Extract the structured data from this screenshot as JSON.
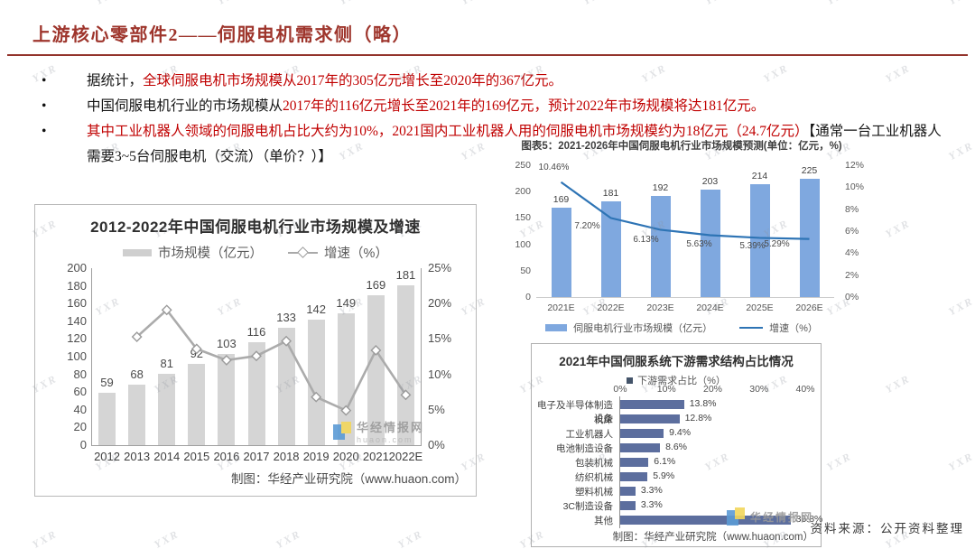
{
  "slide": {
    "title": "上游核心零部件2——伺服电机需求侧（略）",
    "source_note": "资料来源：公开资料整理",
    "watermark_text": "YXR"
  },
  "bullets": [
    {
      "segments": [
        {
          "text": "据统计，",
          "color": "black"
        },
        {
          "text": "全球伺服电机市场规模从2017年的305亿元增长至2020年的367亿元。",
          "color": "red"
        }
      ]
    },
    {
      "segments": [
        {
          "text": "中国伺服电机行业的市场规模从",
          "color": "black"
        },
        {
          "text": "2017年的116亿元增长至2021年的169亿元，预计2022年市场规模将达181亿元。",
          "color": "red"
        }
      ]
    },
    {
      "segments": [
        {
          "text": "其中工业机器人领域的伺服电机占比大约为10%，2021国内工业机器人用的伺服电机市场规模约为18亿元（24.7亿元）",
          "color": "red"
        },
        {
          "text": "【通常一台工业机器人需要3~5台伺服电机（交流）（单价？）】",
          "color": "black"
        }
      ]
    }
  ],
  "huajing_watermark": {
    "line1": "华经情报网",
    "line2": "huaon.com"
  },
  "colors": {
    "title_red": "#9E352C",
    "accent_red": "#C00000",
    "bar_gray": "#D5D5D5",
    "line_gray": "#ABABAB",
    "bar_blue": "#7FA8DF",
    "line_blue": "#2E74B5",
    "bar_slate": "#5C6E9E"
  },
  "chart_data": [
    {
      "id": "china-servo-market-2012-2022",
      "type": "bar+line",
      "title": "2012-2022年中国伺服电机行业市场规模及增速",
      "categories": [
        "2012",
        "2013",
        "2014",
        "2015",
        "2016",
        "2017",
        "2018",
        "2019",
        "2020",
        "2021",
        "2022E"
      ],
      "series": [
        {
          "name": "市场规模（亿元）",
          "type": "bar",
          "values": [
            59,
            68,
            81,
            92,
            103,
            116,
            133,
            142,
            149,
            169,
            181
          ]
        },
        {
          "name": "增速（%）",
          "type": "line",
          "values": [
            null,
            15.3,
            19.1,
            13.6,
            12.0,
            12.6,
            14.7,
            6.8,
            4.9,
            13.4,
            7.1
          ]
        }
      ],
      "y_left": {
        "min": 0,
        "max": 200,
        "step": 20
      },
      "y_right": {
        "min": 0,
        "max": 25,
        "step": 5,
        "suffix": "%"
      },
      "legend_position": "top",
      "grid": false,
      "source": "制图：华经产业研究院（www.huaon.com）"
    },
    {
      "id": "china-servo-forecast-2021-2026",
      "type": "bar+line",
      "caption": "图表5：2021-2026年中国伺服电机行业市场规模预测(单位：亿元，%)",
      "categories": [
        "2021E",
        "2022E",
        "2023E",
        "2024E",
        "2025E",
        "2026E"
      ],
      "series": [
        {
          "name": "伺服电机行业市场规模（亿元）",
          "type": "bar",
          "values": [
            169,
            181,
            192,
            203,
            214,
            225
          ]
        },
        {
          "name": "增速（%）",
          "type": "line",
          "values": [
            10.46,
            7.2,
            6.13,
            5.63,
            5.39,
            5.29
          ],
          "labels": [
            "10.46%",
            "7.20%",
            "6.13%",
            "5.63%",
            "5.39%",
            "5.29%"
          ]
        }
      ],
      "y_left": {
        "min": 0,
        "max": 250,
        "step": 50
      },
      "y_right": {
        "min": 0,
        "max": 12,
        "step": 2,
        "suffix": "%"
      },
      "legend_position": "bottom",
      "grid": false
    },
    {
      "id": "servo-downstream-demand-2021",
      "type": "bar",
      "orientation": "horizontal",
      "title": "2021年中国伺服系统下游需求结构占比情况",
      "legend": "下游需求占比（%）",
      "categories": [
        "电子及半导体制造设备",
        "机床",
        "工业机器人",
        "电池制造设备",
        "包装机械",
        "纺织机械",
        "塑料机械",
        "3C制造设备",
        "其他"
      ],
      "values": [
        13.8,
        12.8,
        9.4,
        8.6,
        6.1,
        5.9,
        3.3,
        3.3,
        36.8
      ],
      "value_labels": [
        "13.8%",
        "12.8%",
        "9.4%",
        "8.6%",
        "6.1%",
        "5.9%",
        "3.3%",
        "3.3%",
        "36.8%"
      ],
      "x_axis": {
        "min": 0,
        "max": 40,
        "step": 10,
        "suffix": "%"
      },
      "grid": false,
      "source": "制图：华经产业研究院（www.huaon.com）"
    }
  ]
}
